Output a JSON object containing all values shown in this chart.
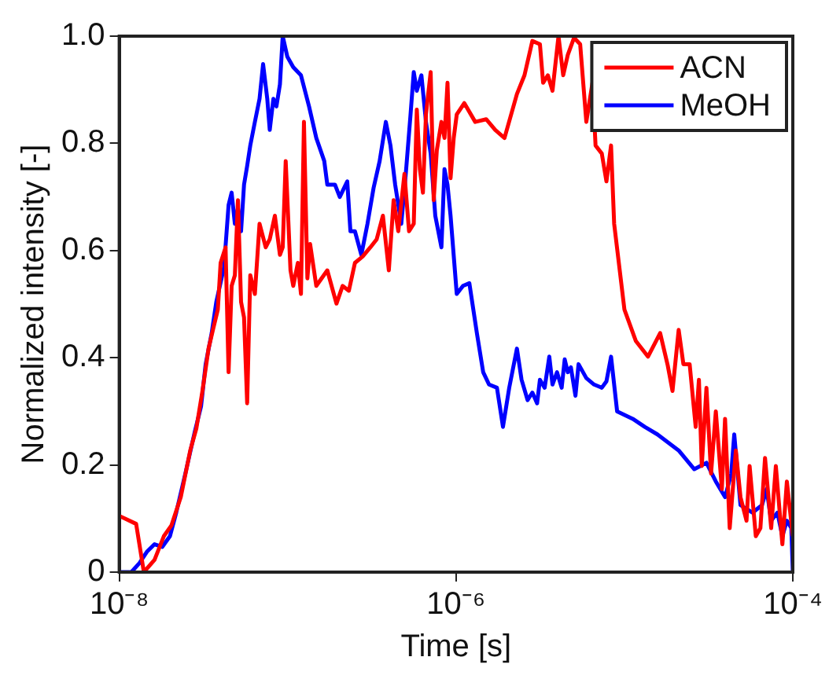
{
  "chart_data": {
    "type": "line",
    "xlabel": "Time [s]",
    "ylabel": "Normalized intensity [-]",
    "log": "x",
    "grid": false,
    "legend": "top right",
    "marker": "none",
    "line_style": "solid",
    "xlim": [
      1e-08,
      0.0001
    ],
    "xticks": [
      {
        "value": 1e-08,
        "label": "10⁻⁸"
      },
      {
        "value": 1e-06,
        "label": "10⁻⁶"
      },
      {
        "value": 0.0001,
        "label": "10⁻⁴"
      }
    ],
    "ylim": [
      0,
      1
    ],
    "yticks": [
      0,
      0.2,
      0.4,
      0.6,
      0.8,
      {
        "value": 1,
        "label": "1.0"
      }
    ],
    "series": [
      {
        "name": "ACN",
        "color": "#ff0000",
        "x": [
          1e-08,
          1.26e-08,
          1.4e-08,
          1.62e-08,
          1.84e-08,
          2.04e-08,
          2.32e-08,
          2.64e-08,
          2.87e-08,
          3.12e-08,
          3.39e-08,
          3.62e-08,
          3.85e-08,
          4e-08,
          4.28e-08,
          4.46e-08,
          4.65e-08,
          4.86e-08,
          5.07e-08,
          5.29e-08,
          5.51e-08,
          5.75e-08,
          6e-08,
          6.39e-08,
          6.81e-08,
          7.41e-08,
          7.83e-08,
          8.4e-08,
          9e-08,
          9.35e-08,
          9.74e-08,
          1.04e-07,
          1.08e-07,
          1.15e-07,
          1.2e-07,
          1.25e-07,
          1.31e-07,
          1.36e-07,
          1.48e-07,
          1.72e-07,
          1.95e-07,
          2.12e-07,
          2.31e-07,
          2.51e-07,
          2.79e-07,
          3.1e-07,
          3.38e-07,
          3.68e-07,
          3.99e-07,
          4.26e-07,
          4.54e-07,
          4.94e-07,
          5.26e-07,
          5.61e-07,
          5.85e-07,
          6.1e-07,
          6.36e-07,
          6.63e-07,
          7.07e-07,
          7.37e-07,
          7.69e-07,
          8.19e-07,
          8.54e-07,
          8.9e-07,
          9.28e-07,
          9.69e-07,
          1.01e-06,
          1.12e-06,
          1.3e-06,
          1.51e-06,
          1.71e-06,
          1.94e-06,
          2.3e-06,
          2.55e-06,
          2.84e-06,
          3.15e-06,
          3.29e-06,
          3.51e-06,
          3.74e-06,
          4.06e-06,
          4.33e-06,
          4.61e-06,
          5.02e-06,
          5.46e-06,
          5.94e-06,
          6.46e-06,
          6.74e-06,
          7.34e-06,
          7.82e-06,
          8.33e-06,
          8.69e-06,
          1e-05,
          1.17e-05,
          1.38e-05,
          1.63e-05,
          1.81e-05,
          1.93e-05,
          2.1e-05,
          2.24e-05,
          2.44e-05,
          2.65e-05,
          2.77e-05,
          2.88e-05,
          3.07e-05,
          3.27e-05,
          3.49e-05,
          3.79e-05,
          3.96e-05,
          4.22e-05,
          4.59e-05,
          4.89e-05,
          5.31e-05,
          5.54e-05,
          6.03e-05,
          6.42e-05,
          6.84e-05,
          7.44e-05,
          7.93e-05,
          8.67e-05,
          9.22e-05,
          0.0001
        ],
        "values": [
          0.105,
          0.09,
          0,
          0.023,
          0.067,
          0.087,
          0.14,
          0.227,
          0.268,
          0.338,
          0.417,
          0.455,
          0.49,
          0.577,
          0.606,
          0.373,
          0.534,
          0.554,
          0.694,
          0.504,
          0.475,
          0.315,
          0.554,
          0.519,
          0.65,
          0.606,
          0.621,
          0.665,
          0.592,
          0.606,
          0.767,
          0.563,
          0.534,
          0.577,
          0.519,
          0.84,
          0.548,
          0.612,
          0.534,
          0.563,
          0.501,
          0.534,
          0.525,
          0.577,
          0.589,
          0.606,
          0.621,
          0.665,
          0.563,
          0.694,
          0.636,
          0.743,
          0.636,
          0.65,
          0.863,
          0.752,
          0.708,
          0.854,
          0.933,
          0.694,
          0.787,
          0.84,
          0.81,
          0.913,
          0.735,
          0.81,
          0.854,
          0.875,
          0.84,
          0.845,
          0.825,
          0.81,
          0.892,
          0.927,
          0.991,
          0.985,
          0.913,
          0.927,
          0.898,
          1.0,
          0.927,
          0.965,
          0.997,
          0.985,
          0.84,
          0.913,
          0.796,
          0.781,
          0.729,
          0.796,
          0.65,
          0.49,
          0.431,
          0.402,
          0.446,
          0.385,
          0.338,
          0.452,
          0.388,
          0.388,
          0.271,
          0.359,
          0.198,
          0.344,
          0.184,
          0.3,
          0.155,
          0.286,
          0.082,
          0.227,
          0.14,
          0.096,
          0.198,
          0.067,
          0.082,
          0.213,
          0.082,
          0.198,
          0.052,
          0.169,
          0.067
        ]
      },
      {
        "name": "MeOH",
        "color": "#0000ff",
        "x": [
          1e-08,
          1.18e-08,
          1.32e-08,
          1.46e-08,
          1.62e-08,
          1.8e-08,
          2e-08,
          2.18e-08,
          2.47e-08,
          2.81e-08,
          3.06e-08,
          3.26e-08,
          3.54e-08,
          3.77e-08,
          4.19e-08,
          4.46e-08,
          4.65e-08,
          4.86e-08,
          5.07e-08,
          5.29e-08,
          5.51e-08,
          5.75e-08,
          6e-08,
          6.39e-08,
          6.81e-08,
          7.15e-08,
          7.57e-08,
          7.83e-08,
          8.23e-08,
          8.58e-08,
          9e-08,
          9.35e-08,
          9.95e-08,
          1.08e-07,
          1.2e-07,
          1.34e-07,
          1.48e-07,
          1.65e-07,
          1.72e-07,
          1.91e-07,
          2.04e-07,
          2.26e-07,
          2.36e-07,
          2.51e-07,
          2.74e-07,
          2.98e-07,
          3.24e-07,
          3.52e-07,
          3.83e-07,
          4.08e-07,
          4.35e-07,
          4.73e-07,
          5.04e-07,
          5.37e-07,
          5.61e-07,
          5.85e-07,
          6.23e-07,
          6.63e-07,
          7.07e-07,
          7.53e-07,
          8.19e-07,
          8.54e-07,
          8.9e-07,
          9.28e-07,
          1.01e-06,
          1.1e-06,
          1.2e-06,
          1.33e-06,
          1.45e-06,
          1.57e-06,
          1.75e-06,
          1.9e-06,
          2.07e-06,
          2.3e-06,
          2.45e-06,
          2.66e-06,
          2.84e-06,
          3.03e-06,
          3.15e-06,
          3.36e-06,
          3.58e-06,
          3.74e-06,
          3.98e-06,
          4.24e-06,
          4.42e-06,
          4.61e-06,
          4.81e-06,
          5.12e-06,
          5.34e-06,
          5.94e-06,
          6.6e-06,
          7.34e-06,
          7.82e-06,
          8.33e-06,
          9.05e-06,
          1.12e-05,
          1.32e-05,
          1.57e-05,
          2.1e-05,
          2.6e-05,
          3.07e-05,
          3.49e-05,
          3.96e-05,
          4.31e-05,
          4.49e-05,
          4.89e-05,
          5.77e-05,
          6.56e-05,
          6.99e-05,
          7.44e-05,
          8.1e-05,
          8.67e-05,
          9.22e-05,
          9.8e-05,
          0.0001
        ],
        "values": [
          0,
          0,
          0.017,
          0.038,
          0.052,
          0.047,
          0.067,
          0.111,
          0.184,
          0.262,
          0.309,
          0.388,
          0.446,
          0.504,
          0.569,
          0.685,
          0.708,
          0.65,
          0.679,
          0.636,
          0.723,
          0.758,
          0.796,
          0.84,
          0.883,
          0.948,
          0.883,
          0.825,
          0.883,
          0.869,
          0.91,
          1.0,
          0.962,
          0.942,
          0.927,
          0.869,
          0.81,
          0.767,
          0.723,
          0.723,
          0.7,
          0.729,
          0.636,
          0.636,
          0.592,
          0.65,
          0.717,
          0.767,
          0.84,
          0.796,
          0.723,
          0.65,
          0.746,
          0.854,
          0.933,
          0.898,
          0.927,
          0.84,
          0.781,
          0.665,
          0.606,
          0.752,
          0.723,
          0.665,
          0.519,
          0.534,
          0.539,
          0.446,
          0.373,
          0.35,
          0.344,
          0.271,
          0.344,
          0.417,
          0.359,
          0.321,
          0.335,
          0.315,
          0.359,
          0.344,
          0.402,
          0.35,
          0.373,
          0.344,
          0.397,
          0.373,
          0.382,
          0.329,
          0.388,
          0.362,
          0.35,
          0.344,
          0.356,
          0.402,
          0.3,
          0.286,
          0.271,
          0.257,
          0.227,
          0.192,
          0.204,
          0.169,
          0.14,
          0.184,
          0.257,
          0.125,
          0.111,
          0.125,
          0.155,
          0.096,
          0.111,
          0.067,
          0.096,
          0.082,
          0
        ]
      }
    ]
  }
}
